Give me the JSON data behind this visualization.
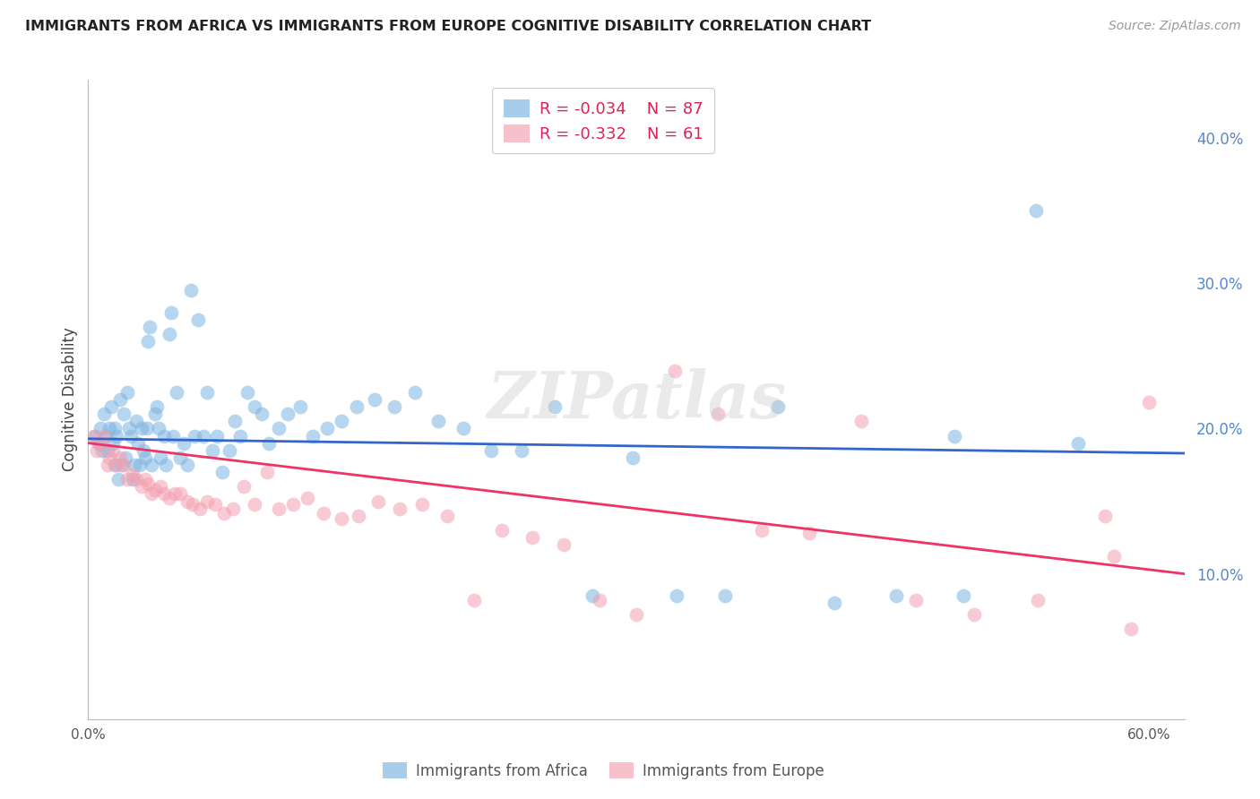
{
  "title": "IMMIGRANTS FROM AFRICA VS IMMIGRANTS FROM EUROPE COGNITIVE DISABILITY CORRELATION CHART",
  "source": "Source: ZipAtlas.com",
  "ylabel": "Cognitive Disability",
  "africa_color": "#7ab3e0",
  "europe_color": "#f4a0b0",
  "africa_line_color": "#3366cc",
  "europe_line_color": "#ee3366",
  "legend_R_africa": "-0.034",
  "legend_N_africa": "87",
  "legend_R_europe": "-0.332",
  "legend_N_europe": "61",
  "legend_label_africa": "Immigrants from Africa",
  "legend_label_europe": "Immigrants from Europe",
  "watermark": "ZIPatlas",
  "background_color": "#ffffff",
  "grid_color": "#dddddd",
  "xlim": [
    0.0,
    0.62
  ],
  "ylim": [
    0.0,
    0.44
  ],
  "africa_scatter_x": [
    0.004,
    0.006,
    0.007,
    0.008,
    0.009,
    0.01,
    0.011,
    0.012,
    0.013,
    0.014,
    0.015,
    0.015,
    0.016,
    0.017,
    0.018,
    0.019,
    0.02,
    0.021,
    0.022,
    0.023,
    0.024,
    0.025,
    0.026,
    0.027,
    0.028,
    0.029,
    0.03,
    0.031,
    0.032,
    0.033,
    0.034,
    0.035,
    0.036,
    0.038,
    0.039,
    0.04,
    0.041,
    0.043,
    0.044,
    0.046,
    0.047,
    0.048,
    0.05,
    0.052,
    0.054,
    0.056,
    0.058,
    0.06,
    0.062,
    0.065,
    0.067,
    0.07,
    0.073,
    0.076,
    0.08,
    0.083,
    0.086,
    0.09,
    0.094,
    0.098,
    0.102,
    0.108,
    0.113,
    0.12,
    0.127,
    0.135,
    0.143,
    0.152,
    0.162,
    0.173,
    0.185,
    0.198,
    0.212,
    0.228,
    0.245,
    0.264,
    0.285,
    0.308,
    0.333,
    0.36,
    0.39,
    0.422,
    0.457,
    0.495,
    0.536,
    0.49,
    0.56
  ],
  "africa_scatter_y": [
    0.195,
    0.19,
    0.2,
    0.185,
    0.21,
    0.195,
    0.185,
    0.2,
    0.215,
    0.19,
    0.175,
    0.2,
    0.195,
    0.165,
    0.22,
    0.175,
    0.21,
    0.18,
    0.225,
    0.2,
    0.195,
    0.165,
    0.175,
    0.205,
    0.19,
    0.175,
    0.2,
    0.185,
    0.18,
    0.2,
    0.26,
    0.27,
    0.175,
    0.21,
    0.215,
    0.2,
    0.18,
    0.195,
    0.175,
    0.265,
    0.28,
    0.195,
    0.225,
    0.18,
    0.19,
    0.175,
    0.295,
    0.195,
    0.275,
    0.195,
    0.225,
    0.185,
    0.195,
    0.17,
    0.185,
    0.205,
    0.195,
    0.225,
    0.215,
    0.21,
    0.19,
    0.2,
    0.21,
    0.215,
    0.195,
    0.2,
    0.205,
    0.215,
    0.22,
    0.215,
    0.225,
    0.205,
    0.2,
    0.185,
    0.185,
    0.215,
    0.085,
    0.18,
    0.085,
    0.085,
    0.215,
    0.08,
    0.085,
    0.085,
    0.35,
    0.195,
    0.19
  ],
  "europe_scatter_x": [
    0.003,
    0.005,
    0.007,
    0.009,
    0.011,
    0.012,
    0.014,
    0.016,
    0.018,
    0.02,
    0.022,
    0.025,
    0.027,
    0.03,
    0.032,
    0.034,
    0.036,
    0.038,
    0.041,
    0.043,
    0.046,
    0.049,
    0.052,
    0.056,
    0.059,
    0.063,
    0.067,
    0.072,
    0.077,
    0.082,
    0.088,
    0.094,
    0.101,
    0.108,
    0.116,
    0.124,
    0.133,
    0.143,
    0.153,
    0.164,
    0.176,
    0.189,
    0.203,
    0.218,
    0.234,
    0.251,
    0.269,
    0.289,
    0.31,
    0.332,
    0.356,
    0.381,
    0.408,
    0.437,
    0.468,
    0.501,
    0.537,
    0.575,
    0.58,
    0.59,
    0.6
  ],
  "europe_scatter_y": [
    0.195,
    0.185,
    0.19,
    0.195,
    0.175,
    0.18,
    0.185,
    0.175,
    0.18,
    0.175,
    0.165,
    0.168,
    0.165,
    0.16,
    0.165,
    0.162,
    0.155,
    0.158,
    0.16,
    0.155,
    0.152,
    0.155,
    0.155,
    0.15,
    0.148,
    0.145,
    0.15,
    0.148,
    0.142,
    0.145,
    0.16,
    0.148,
    0.17,
    0.145,
    0.148,
    0.152,
    0.142,
    0.138,
    0.14,
    0.15,
    0.145,
    0.148,
    0.14,
    0.082,
    0.13,
    0.125,
    0.12,
    0.082,
    0.072,
    0.24,
    0.21,
    0.13,
    0.128,
    0.205,
    0.082,
    0.072,
    0.082,
    0.14,
    0.112,
    0.062,
    0.218
  ],
  "y_tick_positions": [
    0.1,
    0.2,
    0.3,
    0.4
  ],
  "y_tick_labels": [
    "10.0%",
    "20.0%",
    "30.0%",
    "40.0%"
  ],
  "x_tick_positions": [
    0.0,
    0.1,
    0.2,
    0.3,
    0.4,
    0.5,
    0.6
  ],
  "x_tick_labels": [
    "0.0%",
    "",
    "",
    "",
    "",
    "",
    "60.0%"
  ]
}
